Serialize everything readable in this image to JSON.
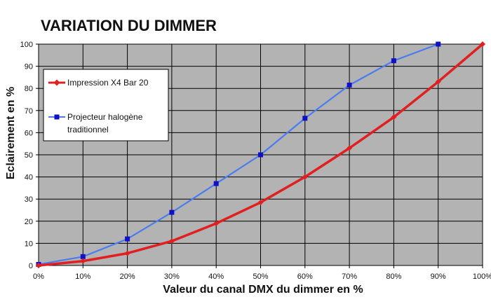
{
  "chart_data": {
    "type": "line",
    "title": "VARIATION DU DIMMER",
    "xlabel": "Valeur du canal DMX du dimmer en %",
    "ylabel": "Eclairement en %",
    "xlim": [
      0,
      100
    ],
    "ylim": [
      0,
      100
    ],
    "x_ticks": [
      "0%",
      "10%",
      "20%",
      "30%",
      "40%",
      "50%",
      "60%",
      "70%",
      "80%",
      "90%",
      "100%"
    ],
    "y_ticks": [
      "0",
      "10",
      "20",
      "30",
      "40",
      "50",
      "60",
      "70",
      "80",
      "90",
      "100"
    ],
    "grid": true,
    "plot_background": "#b3b3b3",
    "legend_position": "top-left",
    "series": [
      {
        "name": "Impression X4 Bar 20",
        "color": "#e02020",
        "marker": "diamond",
        "x": [
          0,
          10,
          20,
          30,
          40,
          50,
          60,
          70,
          80,
          90,
          100
        ],
        "y": [
          0,
          2,
          5.5,
          11,
          19,
          28.5,
          40,
          53,
          67,
          83,
          100
        ]
      },
      {
        "name": "Projecteur halogène traditionnel",
        "legend_lines": [
          "Projecteur halogène",
          "traditionnel"
        ],
        "color": "#4a7cf0",
        "marker_color": "#1010c8",
        "marker": "square",
        "x": [
          0,
          10,
          20,
          30,
          40,
          50,
          60,
          70,
          80,
          90
        ],
        "y": [
          0.5,
          4,
          12,
          24,
          37,
          50,
          66.5,
          81.5,
          92.5,
          100
        ]
      }
    ]
  }
}
